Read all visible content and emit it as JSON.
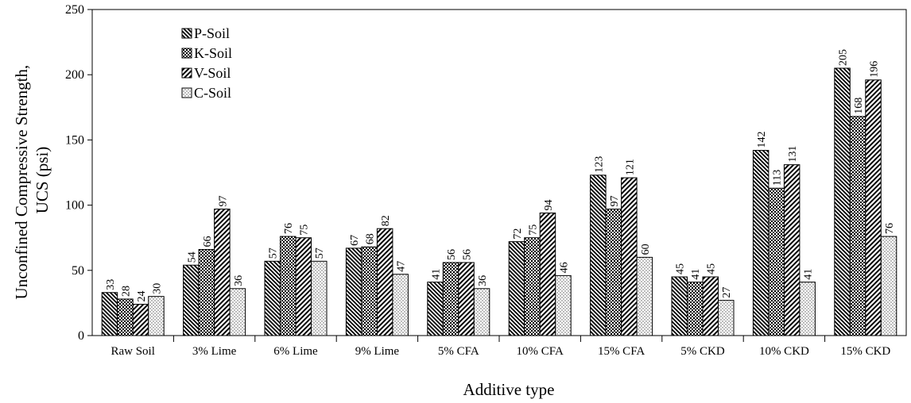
{
  "chart_data": {
    "type": "bar",
    "title": "",
    "xlabel": "Additive type",
    "ylabel": [
      "Unconfined Compressive Strength,",
      "UCS (psi)"
    ],
    "ylim": [
      0,
      250
    ],
    "yticks": [
      0,
      50,
      100,
      150,
      200,
      250
    ],
    "grid": false,
    "legend_position": "top-left",
    "categories": [
      "Raw Soil",
      "3% Lime",
      "6% Lime",
      "9% Lime",
      "5% CFA",
      "10% CFA",
      "15% CFA",
      "5% CKD",
      "10% CKD",
      "15% CKD"
    ],
    "series": [
      {
        "name": "P-Soil",
        "pattern": "back-diagonal-dense",
        "values": [
          33,
          54,
          57,
          67,
          41,
          72,
          123,
          45,
          142,
          205
        ]
      },
      {
        "name": "K-Soil",
        "pattern": "checker",
        "values": [
          28,
          66,
          76,
          68,
          56,
          75,
          97,
          41,
          113,
          168
        ]
      },
      {
        "name": "V-Soil",
        "pattern": "forward-diagonal",
        "values": [
          24,
          97,
          75,
          82,
          56,
          94,
          121,
          45,
          131,
          196
        ]
      },
      {
        "name": "C-Soil",
        "pattern": "dots",
        "values": [
          30,
          36,
          57,
          47,
          36,
          46,
          60,
          27,
          41,
          76
        ]
      }
    ]
  }
}
